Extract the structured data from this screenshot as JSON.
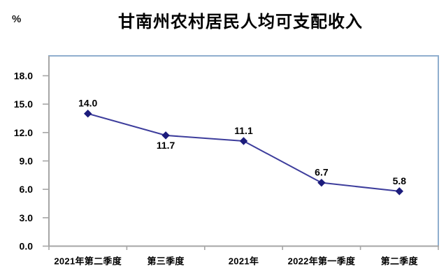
{
  "chart": {
    "title": "甘南州农村居民人均可支配收入",
    "unit_label": "%"
  },
  "chart_data": {
    "type": "line",
    "title": "甘南州农村居民人均可支配收入",
    "xlabel": "",
    "ylabel": "%",
    "categories": [
      "2021年第二季度",
      "第三季度",
      "2021年",
      "2022年第一季度",
      "第二季度"
    ],
    "values": [
      14.0,
      11.7,
      11.1,
      6.7,
      5.8
    ],
    "data_labels": [
      "14.0",
      "11.7",
      "11.1",
      "6.7",
      "5.8"
    ],
    "label_positions": [
      "above",
      "below",
      "above",
      "above",
      "above"
    ],
    "y_ticks": [
      18.0,
      15.0,
      12.0,
      9.0,
      6.0,
      3.0,
      0.0
    ],
    "y_tick_labels": [
      "18.0",
      "15.0",
      "12.0",
      "9.0",
      "6.0",
      "3.0",
      "0.0"
    ],
    "ylim": [
      0,
      20.1
    ],
    "grid": false,
    "legend": false,
    "marker_style": "diamond",
    "colors": {
      "line": "#3D3D9C",
      "marker": "#1C1C7C",
      "plot_border": "#8FAECE",
      "axis": "#A6A6A6",
      "text": "#000000"
    }
  }
}
